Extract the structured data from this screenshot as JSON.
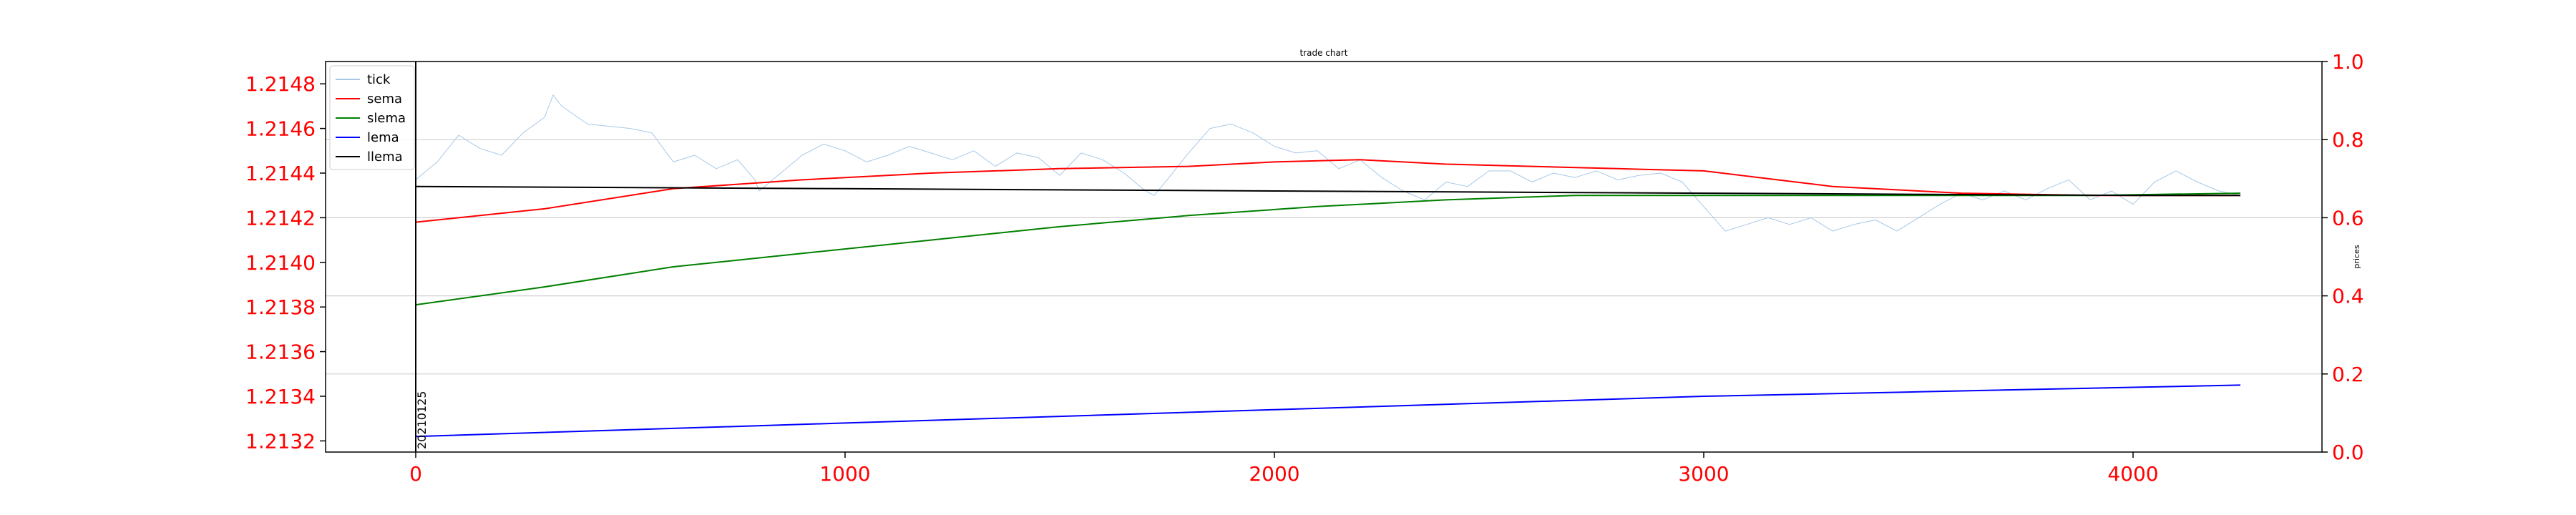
{
  "chart_data": {
    "type": "line",
    "title": "trade chart",
    "xlabel": "",
    "ylabel_left": "",
    "ylabel_right": "prices",
    "xlim": [
      -210,
      4440
    ],
    "ylim_left": [
      1.21315,
      1.2149
    ],
    "ylim_right": [
      0.0,
      1.0
    ],
    "x_ticks": [
      0,
      1000,
      2000,
      3000,
      4000
    ],
    "x_tick_labels": [
      "0",
      "1000",
      "2000",
      "3000",
      "4000"
    ],
    "y_left_ticks": [
      1.2132,
      1.2134,
      1.2136,
      1.2138,
      1.214,
      1.2142,
      1.2144,
      1.2146,
      1.2148
    ],
    "y_left_tick_labels": [
      "1.2132",
      "1.2134",
      "1.2136",
      "1.2138",
      "1.2140",
      "1.2142",
      "1.2144",
      "1.2146",
      "1.2148"
    ],
    "y_right_ticks": [
      0.0,
      0.2,
      0.4,
      0.6,
      0.8,
      1.0
    ],
    "y_right_tick_labels": [
      "0.0",
      "0.2",
      "0.4",
      "0.6",
      "0.8",
      "1.0"
    ],
    "grid": "horizontal",
    "tick_label_color": "#ff0000",
    "legend": {
      "placement": "top-left",
      "entries": [
        "tick",
        "sema",
        "slema",
        "lema",
        "llema"
      ]
    },
    "annotations": [
      {
        "text": "20210125",
        "x": 0,
        "orientation": "vertical"
      }
    ],
    "vertical_lines": [
      0
    ],
    "series": [
      {
        "name": "tick",
        "color": "#a8c8e8",
        "width": 1,
        "x": [
          0,
          50,
          100,
          150,
          200,
          250,
          300,
          320,
          340,
          400,
          500,
          550,
          600,
          650,
          700,
          750,
          790,
          800,
          850,
          900,
          950,
          1000,
          1050,
          1100,
          1150,
          1200,
          1250,
          1300,
          1350,
          1400,
          1450,
          1500,
          1550,
          1600,
          1650,
          1700,
          1720,
          1750,
          1800,
          1850,
          1900,
          1950,
          2000,
          2050,
          2100,
          2150,
          2200,
          2250,
          2300,
          2350,
          2400,
          2450,
          2500,
          2550,
          2600,
          2650,
          2700,
          2750,
          2800,
          2850,
          2900,
          2950,
          3000,
          3050,
          3100,
          3150,
          3200,
          3250,
          3300,
          3350,
          3400,
          3450,
          3500,
          3550,
          3600,
          3650,
          3700,
          3750,
          3800,
          3850,
          3900,
          3950,
          4000,
          4050,
          4100,
          4150,
          4200,
          4250
        ],
        "y": [
          1.21437,
          1.21445,
          1.21457,
          1.21451,
          1.21448,
          1.21458,
          1.21465,
          1.21475,
          1.2147,
          1.21462,
          1.2146,
          1.21458,
          1.21445,
          1.21448,
          1.21442,
          1.21446,
          1.21437,
          1.21432,
          1.2144,
          1.21448,
          1.21453,
          1.2145,
          1.21445,
          1.21448,
          1.21452,
          1.21449,
          1.21446,
          1.2145,
          1.21443,
          1.21449,
          1.21447,
          1.21439,
          1.21449,
          1.21446,
          1.2144,
          1.21432,
          1.2143,
          1.21437,
          1.21449,
          1.2146,
          1.21462,
          1.21458,
          1.21452,
          1.21449,
          1.2145,
          1.21442,
          1.21446,
          1.21438,
          1.21432,
          1.21428,
          1.21436,
          1.21434,
          1.21441,
          1.21441,
          1.21436,
          1.2144,
          1.21438,
          1.21441,
          1.21437,
          1.21439,
          1.2144,
          1.21436,
          1.21425,
          1.21414,
          1.21417,
          1.2142,
          1.21417,
          1.2142,
          1.21414,
          1.21417,
          1.21419,
          1.21414,
          1.2142,
          1.21426,
          1.21431,
          1.21428,
          1.21432,
          1.21428,
          1.21433,
          1.21437,
          1.21428,
          1.21432,
          1.21426,
          1.21436,
          1.21441,
          1.21436,
          1.21432,
          1.2143
        ]
      },
      {
        "name": "sema",
        "color": "#ff0000",
        "width": 2,
        "x": [
          0,
          300,
          600,
          900,
          1200,
          1500,
          1800,
          2000,
          2200,
          2400,
          2600,
          2800,
          3000,
          3300,
          3600,
          3900,
          4250
        ],
        "y": [
          1.21418,
          1.21424,
          1.21433,
          1.21437,
          1.2144,
          1.21442,
          1.21443,
          1.21445,
          1.21446,
          1.21444,
          1.21443,
          1.21442,
          1.21441,
          1.21434,
          1.21431,
          1.2143,
          1.2143
        ]
      },
      {
        "name": "slema",
        "color": "#008000",
        "width": 2,
        "x": [
          0,
          300,
          600,
          900,
          1200,
          1500,
          1800,
          2100,
          2400,
          2700,
          3000,
          3300,
          3600,
          3900,
          4250
        ],
        "y": [
          1.21381,
          1.21389,
          1.21398,
          1.21404,
          1.2141,
          1.21416,
          1.21421,
          1.21425,
          1.21428,
          1.2143,
          1.2143,
          1.2143,
          1.2143,
          1.2143,
          1.21431
        ]
      },
      {
        "name": "lema",
        "color": "#0000ff",
        "width": 2,
        "x": [
          0,
          500,
          1000,
          1500,
          2000,
          2500,
          3000,
          3500,
          4000,
          4250
        ],
        "y": [
          1.21322,
          1.21325,
          1.21328,
          1.21331,
          1.21334,
          1.21337,
          1.2134,
          1.21342,
          1.21344,
          1.21345
        ]
      },
      {
        "name": "llema",
        "color": "#000000",
        "width": 2,
        "x": [
          0,
          1000,
          2000,
          3000,
          4000,
          4250
        ],
        "y": [
          1.21434,
          1.21433,
          1.21432,
          1.21431,
          1.2143,
          1.2143
        ]
      }
    ]
  }
}
